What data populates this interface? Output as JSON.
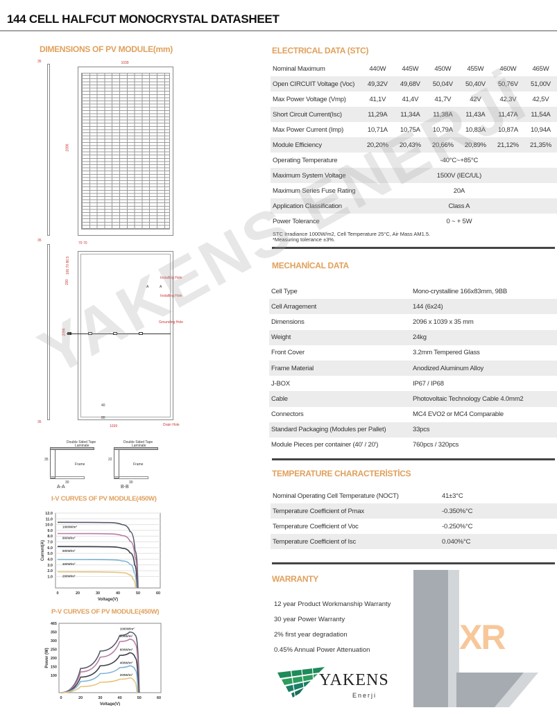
{
  "title": "144 CELL HALFCUT MONOCRYSTAL DATASHEET",
  "watermark": "YAKENS ENERJİ",
  "accent_color": "#e0a05c",
  "dimensions": {
    "heading": "DIMENSIONS OF PV MODULE(mm)",
    "front": {
      "width": "1039",
      "height": "2096",
      "frame_top": "35"
    },
    "back": {
      "top_dims": "70 70",
      "side_dims": "100 70 86.5",
      "side_dim2": "200",
      "height": "2096",
      "width": "1039",
      "frame_top": "35",
      "frame_bottom": "35",
      "hole1": "40",
      "hole2": "80",
      "labels": {
        "installing_hole_1": "Installing Hole",
        "section_marker_left": "A",
        "section_marker_right": "A",
        "installing_hole_2": "Installing Hole",
        "grounding_hole": "Grounding Hole",
        "drain_hole": "Drain Hole"
      }
    },
    "sections": [
      {
        "name": "A-A",
        "tape": "Double Sided Tape",
        "laminate": "Laminate",
        "frame": "Frame",
        "h": "35",
        "w": "30"
      },
      {
        "name": "B-B",
        "tape": "Double Sided Tape",
        "laminate": "Laminate",
        "frame": "Frame",
        "h": "22",
        "w": "30"
      }
    ]
  },
  "electrical": {
    "heading": "ELECTRICAL DATA (STC)",
    "rows": [
      {
        "label": "Nominal Maximum",
        "values": [
          "440W",
          "445W",
          "450W",
          "455W",
          "460W",
          "465W"
        ]
      },
      {
        "label": "Open CIRCUIT Voltage (Voc)",
        "values": [
          "49,32V",
          "49,68V",
          "50,04V",
          "50,40V",
          "50,76V",
          "51,00V"
        ]
      },
      {
        "label": "Max Power Voltage (Vmp)",
        "values": [
          "41,1V",
          "41,4V",
          "41,7V",
          "42V",
          "42,3V",
          "42,5V"
        ]
      },
      {
        "label": "Short Circuit Current(Isc)",
        "values": [
          "11,29A",
          "11,34A",
          "11,38A",
          "11,43A",
          "11,47A",
          "11,54A"
        ]
      },
      {
        "label": "Max Power Current (Imp)",
        "values": [
          "10,71A",
          "10,75A",
          "10,79A",
          "10,83A",
          "10,87A",
          "10,94A"
        ]
      },
      {
        "label": "Module Efficiency",
        "values": [
          "20,20%",
          "20,43%",
          "20,66%",
          "20,89%",
          "21,12%",
          "21,35%"
        ]
      }
    ],
    "shared": [
      {
        "label": "Operating Temperature",
        "value": "-40°C~+85°C"
      },
      {
        "label": "Maximum System Voltage",
        "value": "1500V (IEC/UL)"
      },
      {
        "label": "Maximum Series Fuse Rating",
        "value": "20A"
      },
      {
        "label": "Application Classification",
        "value": "Class A"
      },
      {
        "label": "Power Tolerance",
        "value": "0 ~ + 5W"
      }
    ],
    "note1": "STC Irradiance 1000W/m2, Cell Temperature 25°C, Air Mass AM1.5.",
    "note2": "*Measuring tolerance ±3%."
  },
  "mechanical": {
    "heading": "MECHANİCAL DATA",
    "rows": [
      {
        "label": "Cell Type",
        "value": "Mono-crystalline 166x83mm, 9BB"
      },
      {
        "label": "Cell Arragement",
        "value": "144 (6x24)"
      },
      {
        "label": "Dimensions",
        "value": "2096 x 1039 x 35 mm"
      },
      {
        "label": "Weight",
        "value": "24kg"
      },
      {
        "label": "Front Cover",
        "value": "3.2mm Tempered Glass"
      },
      {
        "label": "Frame Material",
        "value": "Anodized Aluminum Alloy"
      },
      {
        "label": "J-BOX",
        "value": "IP67 / IP68"
      },
      {
        "label": "Cable",
        "value": "Photovoltaic Technology Cable 4.0mm2"
      },
      {
        "label": "Connectors",
        "value": "MC4 EVO2 or MC4 Comparable"
      },
      {
        "label": "Standard Packaging (Modules per Pallet)",
        "value": "33pcs"
      },
      {
        "label": "Module Pieces per container (40' / 20')",
        "value": "760pcs / 320pcs"
      }
    ]
  },
  "temperature": {
    "heading": "TEMPERATURE CHARACTERİSTİCS",
    "rows": [
      {
        "label": "Nominal Operating Cell Temperature (NOCT)",
        "value": "41±3°C"
      },
      {
        "label": "Temperature Coefficient of Pmax",
        "value": "-0.350%°C"
      },
      {
        "label": "Temperature Coefficient of Voc",
        "value": "-0.250%°C"
      },
      {
        "label": "Temperature Coefficient of Isc",
        "value": "0.040%°C"
      }
    ]
  },
  "warranty": {
    "heading": "WARRANTY",
    "items": [
      "12 year Product Workmanship Warranty",
      "30 year Power Warranty",
      "2% first year degradation",
      "0.45% Annual Power Attenuation"
    ]
  },
  "logo": {
    "brand": "YAKENS",
    "sub": "Enerji",
    "mark": "XR"
  },
  "chart_data": [
    {
      "type": "line",
      "title": "I-V CURVES OF PV MODULE(450W)",
      "xlabel": "Voltage(V)",
      "ylabel": "Current(A)",
      "xticks": [
        "0",
        "20",
        "30",
        "40",
        "50",
        "60"
      ],
      "xtick_values": [
        0,
        20,
        30,
        40,
        50,
        60
      ],
      "yticks": [
        "1.0",
        "2.0",
        "3.0",
        "4.0",
        "5.0",
        "6.0",
        "7.0",
        "8.0",
        "9.0",
        "10.0",
        "11.0",
        "12.0"
      ],
      "ylim": [
        0.5,
        12.5
      ],
      "grid": true,
      "series": [
        {
          "name": "1000W/m²",
          "color": "#555a68",
          "points": [
            [
              0,
              11.4
            ],
            [
              35,
              11.35
            ],
            [
              42,
              11.0
            ],
            [
              46,
              9.8
            ],
            [
              48.5,
              6.5
            ],
            [
              50,
              0.5
            ]
          ]
        },
        {
          "name": "800W/m²",
          "color": "#b77fa6",
          "points": [
            [
              0,
              9.45
            ],
            [
              35,
              9.4
            ],
            [
              42,
              9.1
            ],
            [
              46,
              8.1
            ],
            [
              48.5,
              5.3
            ],
            [
              49.8,
              0.5
            ]
          ]
        },
        {
          "name": "600W/m²",
          "color": "#3d3f48",
          "points": [
            [
              0,
              7.2
            ],
            [
              35,
              7.15
            ],
            [
              42,
              6.9
            ],
            [
              46,
              6.1
            ],
            [
              48.3,
              4.0
            ],
            [
              49.6,
              0.5
            ]
          ]
        },
        {
          "name": "400W/m²",
          "color": "#7fb4d4",
          "points": [
            [
              0,
              4.95
            ],
            [
              35,
              4.9
            ],
            [
              42,
              4.7
            ],
            [
              46,
              4.1
            ],
            [
              48,
              2.7
            ],
            [
              49.3,
              0.5
            ]
          ]
        },
        {
          "name": "200W/m²",
          "color": "#e8c47a",
          "points": [
            [
              0,
              2.8
            ],
            [
              35,
              2.75
            ],
            [
              42,
              2.65
            ],
            [
              45.5,
              2.3
            ],
            [
              47.5,
              1.5
            ],
            [
              48.8,
              0.5
            ]
          ]
        }
      ]
    },
    {
      "type": "line",
      "title": "P-V CURVES OF PV MODULE(450W)",
      "xlabel": "Voltage(V)",
      "ylabel": "Power (W)",
      "xticks": [
        "0",
        "20",
        "30",
        "40",
        "50",
        "60"
      ],
      "xtick_values": [
        0,
        20,
        30,
        40,
        50,
        60
      ],
      "yticks": [
        "100",
        "150",
        "200",
        "250",
        "300",
        "350",
        "465"
      ],
      "ytick_values": [
        100,
        150,
        200,
        250,
        300,
        350,
        465
      ],
      "ylim": [
        50,
        500
      ],
      "grid": false,
      "series": [
        {
          "name": "1000W/m²",
          "color": "#555a68",
          "points": [
            [
              0,
              50
            ],
            [
              20,
              190
            ],
            [
              30,
              290
            ],
            [
              40,
              420
            ],
            [
              45,
              465
            ],
            [
              48,
              420
            ],
            [
              50,
              50
            ]
          ]
        },
        {
          "name": "800W/m²",
          "color": "#b77fa6",
          "points": [
            [
              0,
              50
            ],
            [
              20,
              170
            ],
            [
              30,
              255
            ],
            [
              40,
              345
            ],
            [
              45,
              370
            ],
            [
              48,
              330
            ],
            [
              49.8,
              50
            ]
          ]
        },
        {
          "name": "600W/m²",
          "color": "#3d3f48",
          "points": [
            [
              0,
              50
            ],
            [
              20,
              140
            ],
            [
              30,
              205
            ],
            [
              40,
              265
            ],
            [
              45,
              280
            ],
            [
              48,
              250
            ],
            [
              49.6,
              50
            ]
          ]
        },
        {
          "name": "400W/m²",
          "color": "#7fb4d4",
          "points": [
            [
              0,
              50
            ],
            [
              20,
              115
            ],
            [
              30,
              160
            ],
            [
              40,
              195
            ],
            [
              45,
              205
            ],
            [
              48,
              180
            ],
            [
              49.3,
              50
            ]
          ]
        },
        {
          "name": "200W/m²",
          "color": "#e8c47a",
          "points": [
            [
              0,
              50
            ],
            [
              20,
              85
            ],
            [
              30,
              110
            ],
            [
              40,
              128
            ],
            [
              45,
              135
            ],
            [
              47.5,
              115
            ],
            [
              48.8,
              50
            ]
          ]
        }
      ]
    }
  ]
}
